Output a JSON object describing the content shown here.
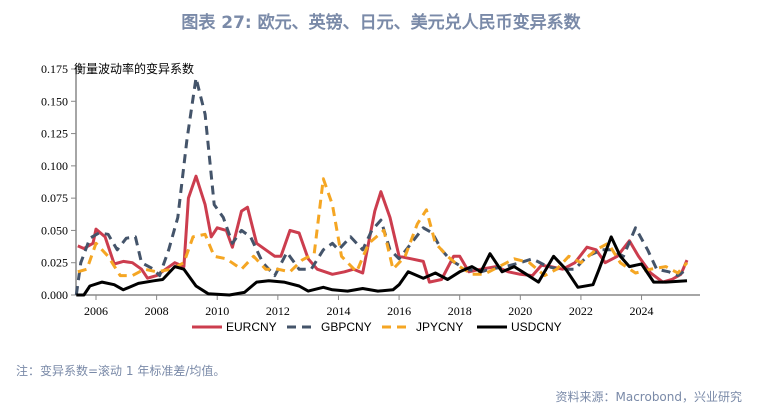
{
  "title": "图表 27: 欧元、英镑、日元、美元兑人民币变异系数",
  "note": "注：变异系数=滚动 1 年标准差/均值。",
  "source": "资料来源：Macrobond，兴业研究",
  "chart_data": {
    "type": "line",
    "annotation": "衡量波动率的变异系数",
    "xlim": [
      2005.34,
      2025.5
    ],
    "ylim": [
      0,
      0.175
    ],
    "xticks": [
      2006,
      2008,
      2010,
      2012,
      2014,
      2016,
      2018,
      2020,
      2022,
      2024
    ],
    "yticks": [
      "0.000",
      "0.025",
      "0.050",
      "0.075",
      "0.100",
      "0.125",
      "0.150",
      "0.175"
    ],
    "grid": false,
    "legend": "bottom",
    "series": [
      {
        "name": "EURCNY",
        "color": "#cc3d4e",
        "dash": "solid",
        "points": [
          [
            2005.4,
            0.038
          ],
          [
            2005.6,
            0.036
          ],
          [
            2005.9,
            0.04
          ],
          [
            2006.0,
            0.051
          ],
          [
            2006.3,
            0.045
          ],
          [
            2006.6,
            0.024
          ],
          [
            2006.9,
            0.026
          ],
          [
            2007.2,
            0.025
          ],
          [
            2007.5,
            0.02
          ],
          [
            2007.7,
            0.013
          ],
          [
            2008.0,
            0.015
          ],
          [
            2008.3,
            0.02
          ],
          [
            2008.6,
            0.025
          ],
          [
            2008.9,
            0.022
          ],
          [
            2009.05,
            0.075
          ],
          [
            2009.3,
            0.092
          ],
          [
            2009.6,
            0.07
          ],
          [
            2009.8,
            0.045
          ],
          [
            2010.0,
            0.052
          ],
          [
            2010.3,
            0.05
          ],
          [
            2010.5,
            0.037
          ],
          [
            2010.8,
            0.065
          ],
          [
            2011.0,
            0.068
          ],
          [
            2011.3,
            0.04
          ],
          [
            2011.6,
            0.035
          ],
          [
            2011.9,
            0.03
          ],
          [
            2012.1,
            0.03
          ],
          [
            2012.4,
            0.05
          ],
          [
            2012.7,
            0.048
          ],
          [
            2013.0,
            0.028
          ],
          [
            2013.3,
            0.02
          ],
          [
            2013.8,
            0.016
          ],
          [
            2014.2,
            0.018
          ],
          [
            2014.5,
            0.02
          ],
          [
            2014.8,
            0.017
          ],
          [
            2015.2,
            0.065
          ],
          [
            2015.4,
            0.08
          ],
          [
            2015.7,
            0.06
          ],
          [
            2016.0,
            0.03
          ],
          [
            2016.4,
            0.028
          ],
          [
            2016.8,
            0.026
          ],
          [
            2017.0,
            0.01
          ],
          [
            2017.4,
            0.012
          ],
          [
            2017.8,
            0.03
          ],
          [
            2018.0,
            0.03
          ],
          [
            2018.3,
            0.018
          ],
          [
            2018.7,
            0.02
          ],
          [
            2019.2,
            0.022
          ],
          [
            2019.6,
            0.018
          ],
          [
            2020.0,
            0.016
          ],
          [
            2020.4,
            0.015
          ],
          [
            2020.7,
            0.023
          ],
          [
            2021.0,
            0.022
          ],
          [
            2021.4,
            0.02
          ],
          [
            2021.8,
            0.025
          ],
          [
            2022.2,
            0.037
          ],
          [
            2022.5,
            0.035
          ],
          [
            2022.8,
            0.025
          ],
          [
            2023.2,
            0.03
          ],
          [
            2023.6,
            0.042
          ],
          [
            2023.9,
            0.03
          ],
          [
            2024.3,
            0.017
          ],
          [
            2024.7,
            0.01
          ],
          [
            2025.0,
            0.012
          ],
          [
            2025.3,
            0.016
          ],
          [
            2025.5,
            0.027
          ]
        ]
      },
      {
        "name": "GBPCNY",
        "color": "#44546a",
        "dash": "dashed",
        "points": [
          [
            2005.35,
            0.0
          ],
          [
            2005.5,
            0.025
          ],
          [
            2005.8,
            0.044
          ],
          [
            2006.1,
            0.048
          ],
          [
            2006.4,
            0.047
          ],
          [
            2006.7,
            0.035
          ],
          [
            2007.0,
            0.044
          ],
          [
            2007.3,
            0.045
          ],
          [
            2007.5,
            0.025
          ],
          [
            2007.9,
            0.02
          ],
          [
            2008.1,
            0.015
          ],
          [
            2008.4,
            0.035
          ],
          [
            2008.7,
            0.06
          ],
          [
            2009.0,
            0.12
          ],
          [
            2009.3,
            0.168
          ],
          [
            2009.6,
            0.14
          ],
          [
            2009.9,
            0.07
          ],
          [
            2010.2,
            0.06
          ],
          [
            2010.5,
            0.04
          ],
          [
            2010.8,
            0.05
          ],
          [
            2011.1,
            0.045
          ],
          [
            2011.5,
            0.025
          ],
          [
            2011.9,
            0.015
          ],
          [
            2012.3,
            0.033
          ],
          [
            2012.7,
            0.02
          ],
          [
            2013.1,
            0.02
          ],
          [
            2013.5,
            0.035
          ],
          [
            2013.8,
            0.04
          ],
          [
            2014.0,
            0.035
          ],
          [
            2014.4,
            0.045
          ],
          [
            2014.8,
            0.035
          ],
          [
            2015.1,
            0.05
          ],
          [
            2015.4,
            0.058
          ],
          [
            2015.7,
            0.035
          ],
          [
            2016.0,
            0.028
          ],
          [
            2016.4,
            0.04
          ],
          [
            2016.8,
            0.052
          ],
          [
            2017.1,
            0.048
          ],
          [
            2017.4,
            0.035
          ],
          [
            2017.7,
            0.027
          ],
          [
            2018.2,
            0.02
          ],
          [
            2018.7,
            0.018
          ],
          [
            2019.0,
            0.02
          ],
          [
            2019.5,
            0.022
          ],
          [
            2020.0,
            0.025
          ],
          [
            2020.4,
            0.028
          ],
          [
            2020.9,
            0.022
          ],
          [
            2021.3,
            0.02
          ],
          [
            2021.8,
            0.02
          ],
          [
            2022.2,
            0.03
          ],
          [
            2022.7,
            0.035
          ],
          [
            2023.0,
            0.035
          ],
          [
            2023.4,
            0.03
          ],
          [
            2023.8,
            0.052
          ],
          [
            2024.2,
            0.035
          ],
          [
            2024.5,
            0.02
          ],
          [
            2024.9,
            0.018
          ],
          [
            2025.2,
            0.015
          ],
          [
            2025.5,
            0.02
          ]
        ]
      },
      {
        "name": "JPYCNY",
        "color": "#f5a623",
        "dash": "dashed",
        "points": [
          [
            2005.4,
            0.018
          ],
          [
            2005.7,
            0.02
          ],
          [
            2006.0,
            0.04
          ],
          [
            2006.4,
            0.03
          ],
          [
            2006.8,
            0.015
          ],
          [
            2007.2,
            0.015
          ],
          [
            2007.6,
            0.02
          ],
          [
            2008.0,
            0.018
          ],
          [
            2008.5,
            0.02
          ],
          [
            2008.9,
            0.025
          ],
          [
            2009.2,
            0.045
          ],
          [
            2009.6,
            0.047
          ],
          [
            2009.9,
            0.03
          ],
          [
            2010.3,
            0.028
          ],
          [
            2010.8,
            0.02
          ],
          [
            2011.2,
            0.03
          ],
          [
            2011.6,
            0.02
          ],
          [
            2012.0,
            0.02
          ],
          [
            2012.4,
            0.018
          ],
          [
            2012.8,
            0.027
          ],
          [
            2013.2,
            0.032
          ],
          [
            2013.5,
            0.09
          ],
          [
            2013.8,
            0.07
          ],
          [
            2014.1,
            0.03
          ],
          [
            2014.6,
            0.018
          ],
          [
            2015.0,
            0.04
          ],
          [
            2015.5,
            0.05
          ],
          [
            2015.8,
            0.02
          ],
          [
            2016.2,
            0.03
          ],
          [
            2016.6,
            0.055
          ],
          [
            2016.9,
            0.066
          ],
          [
            2017.2,
            0.04
          ],
          [
            2017.6,
            0.03
          ],
          [
            2018.0,
            0.022
          ],
          [
            2018.4,
            0.016
          ],
          [
            2018.8,
            0.016
          ],
          [
            2019.3,
            0.022
          ],
          [
            2019.8,
            0.028
          ],
          [
            2020.3,
            0.025
          ],
          [
            2020.8,
            0.015
          ],
          [
            2021.2,
            0.02
          ],
          [
            2021.6,
            0.03
          ],
          [
            2022.0,
            0.025
          ],
          [
            2022.5,
            0.035
          ],
          [
            2022.9,
            0.04
          ],
          [
            2023.3,
            0.025
          ],
          [
            2023.8,
            0.017
          ],
          [
            2024.3,
            0.02
          ],
          [
            2024.8,
            0.022
          ],
          [
            2025.2,
            0.017
          ],
          [
            2025.5,
            0.025
          ]
        ]
      },
      {
        "name": "USDCNY",
        "color": "#000000",
        "dash": "solid",
        "points": [
          [
            2005.35,
            0.0
          ],
          [
            2005.6,
            0.0
          ],
          [
            2005.8,
            0.007
          ],
          [
            2006.2,
            0.01
          ],
          [
            2006.6,
            0.008
          ],
          [
            2006.9,
            0.004
          ],
          [
            2007.4,
            0.009
          ],
          [
            2007.9,
            0.011
          ],
          [
            2008.2,
            0.012
          ],
          [
            2008.6,
            0.022
          ],
          [
            2008.9,
            0.02
          ],
          [
            2009.3,
            0.007
          ],
          [
            2009.7,
            0.001
          ],
          [
            2010.4,
            0.0
          ],
          [
            2010.9,
            0.002
          ],
          [
            2011.3,
            0.01
          ],
          [
            2011.7,
            0.011
          ],
          [
            2012.2,
            0.01
          ],
          [
            2012.7,
            0.007
          ],
          [
            2013.0,
            0.003
          ],
          [
            2013.5,
            0.006
          ],
          [
            2013.8,
            0.004
          ],
          [
            2014.3,
            0.003
          ],
          [
            2014.8,
            0.005
          ],
          [
            2015.3,
            0.003
          ],
          [
            2015.8,
            0.004
          ],
          [
            2016.0,
            0.008
          ],
          [
            2016.3,
            0.018
          ],
          [
            2016.8,
            0.013
          ],
          [
            2017.2,
            0.017
          ],
          [
            2017.6,
            0.012
          ],
          [
            2018.0,
            0.018
          ],
          [
            2018.4,
            0.022
          ],
          [
            2018.7,
            0.018
          ],
          [
            2019.0,
            0.032
          ],
          [
            2019.4,
            0.018
          ],
          [
            2019.8,
            0.022
          ],
          [
            2020.2,
            0.016
          ],
          [
            2020.6,
            0.01
          ],
          [
            2021.1,
            0.03
          ],
          [
            2021.5,
            0.02
          ],
          [
            2021.9,
            0.006
          ],
          [
            2022.4,
            0.008
          ],
          [
            2022.6,
            0.02
          ],
          [
            2023.0,
            0.045
          ],
          [
            2023.3,
            0.03
          ],
          [
            2023.6,
            0.022
          ],
          [
            2024.0,
            0.024
          ],
          [
            2024.4,
            0.01
          ],
          [
            2024.8,
            0.01
          ],
          [
            2025.5,
            0.011
          ]
        ]
      }
    ]
  }
}
